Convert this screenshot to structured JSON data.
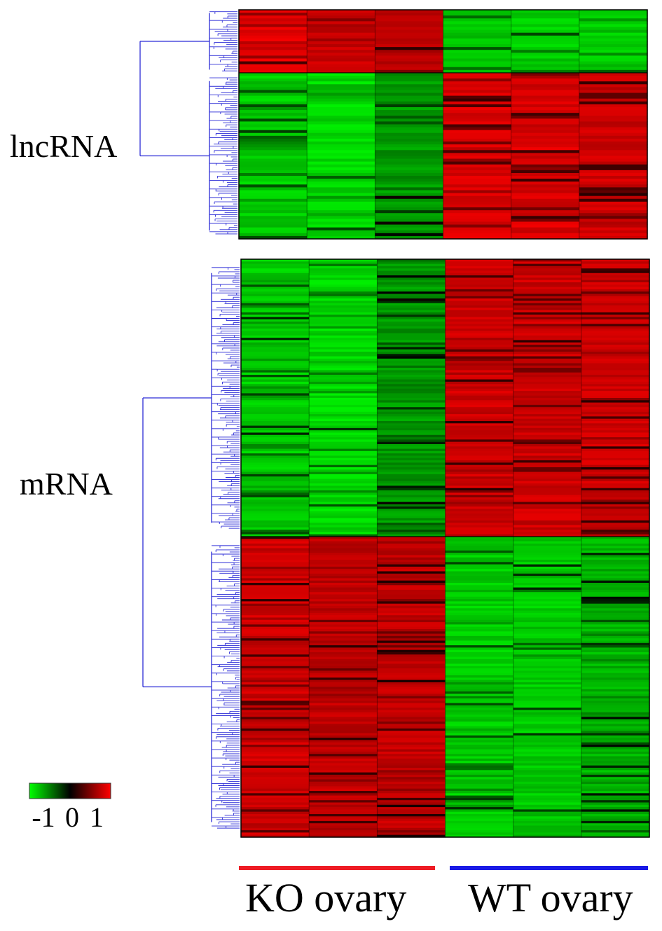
{
  "chart_data": [
    {
      "type": "heatmap",
      "name": "lncRNA",
      "label": "lncRNA",
      "columns": [
        "KO ovary",
        "KO ovary",
        "KO ovary",
        "WT ovary",
        "WT ovary",
        "WT ovary"
      ],
      "row_blocks": [
        {
          "rows": 22,
          "values": [
            1,
            0.9,
            0.8,
            -0.9,
            -0.9,
            -0.9
          ]
        },
        {
          "rows": 58,
          "values": [
            -0.9,
            -0.95,
            -0.7,
            0.95,
            0.95,
            0.9
          ]
        }
      ],
      "value_range": [
        -1,
        1
      ],
      "dendrogram": true
    },
    {
      "type": "heatmap",
      "name": "mRNA",
      "label": "mRNA",
      "columns": [
        "KO ovary",
        "KO ovary",
        "KO ovary",
        "WT ovary",
        "WT ovary",
        "WT ovary"
      ],
      "row_blocks": [
        {
          "rows": 120,
          "values": [
            -0.9,
            -0.95,
            -0.7,
            0.9,
            0.9,
            0.9
          ]
        },
        {
          "rows": 130,
          "values": [
            0.9,
            0.85,
            0.85,
            -0.9,
            -0.9,
            -0.8
          ]
        }
      ],
      "value_range": [
        -1,
        1
      ],
      "dendrogram": true
    }
  ],
  "colorbar": {
    "ticks": [
      "-1",
      "0",
      "1"
    ],
    "colors": {
      "low": "#00ff00",
      "mid": "#000000",
      "high": "#ff0000"
    }
  },
  "groups": [
    {
      "label": "KO ovary",
      "color": "#ee1c25"
    },
    {
      "label": "WT ovary",
      "color": "#1a1ae6"
    }
  ],
  "dendrogram_color": "#2b2bd6"
}
